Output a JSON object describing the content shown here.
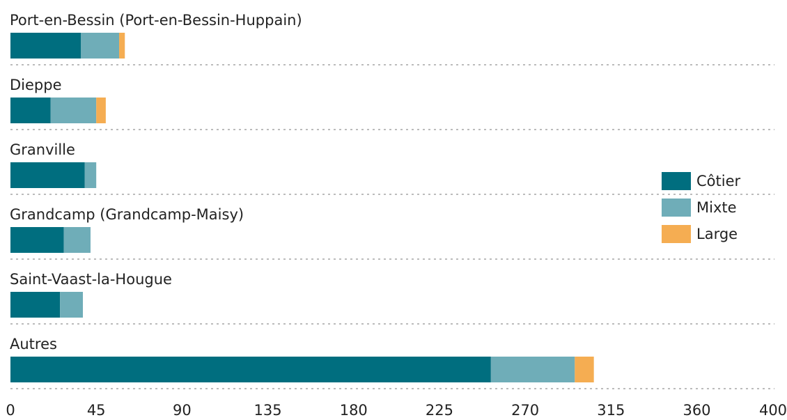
{
  "chart_data": {
    "type": "bar",
    "orientation": "horizontal",
    "stacked": true,
    "categories": [
      "Port-en-Bessin (Port-en-Bessin-Huppain)",
      "Dieppe",
      "Granville",
      "Grandcamp (Grandcamp-Maisy)",
      "Saint-Vaast-la-Hougue",
      "Autres"
    ],
    "series": [
      {
        "name": "Côtier",
        "color": "#006e7f",
        "values": [
          37,
          21,
          39,
          28,
          26,
          252
        ]
      },
      {
        "name": "Mixte",
        "color": "#6fadb8",
        "values": [
          20,
          24,
          6,
          14,
          12,
          44
        ]
      },
      {
        "name": "Large",
        "color": "#f5ad52",
        "values": [
          3,
          5,
          0,
          0,
          0,
          10
        ]
      }
    ],
    "xlim": [
      0,
      400
    ],
    "xticks": [
      0,
      45,
      90,
      135,
      180,
      225,
      270,
      315,
      360,
      400
    ],
    "legend": "right"
  }
}
